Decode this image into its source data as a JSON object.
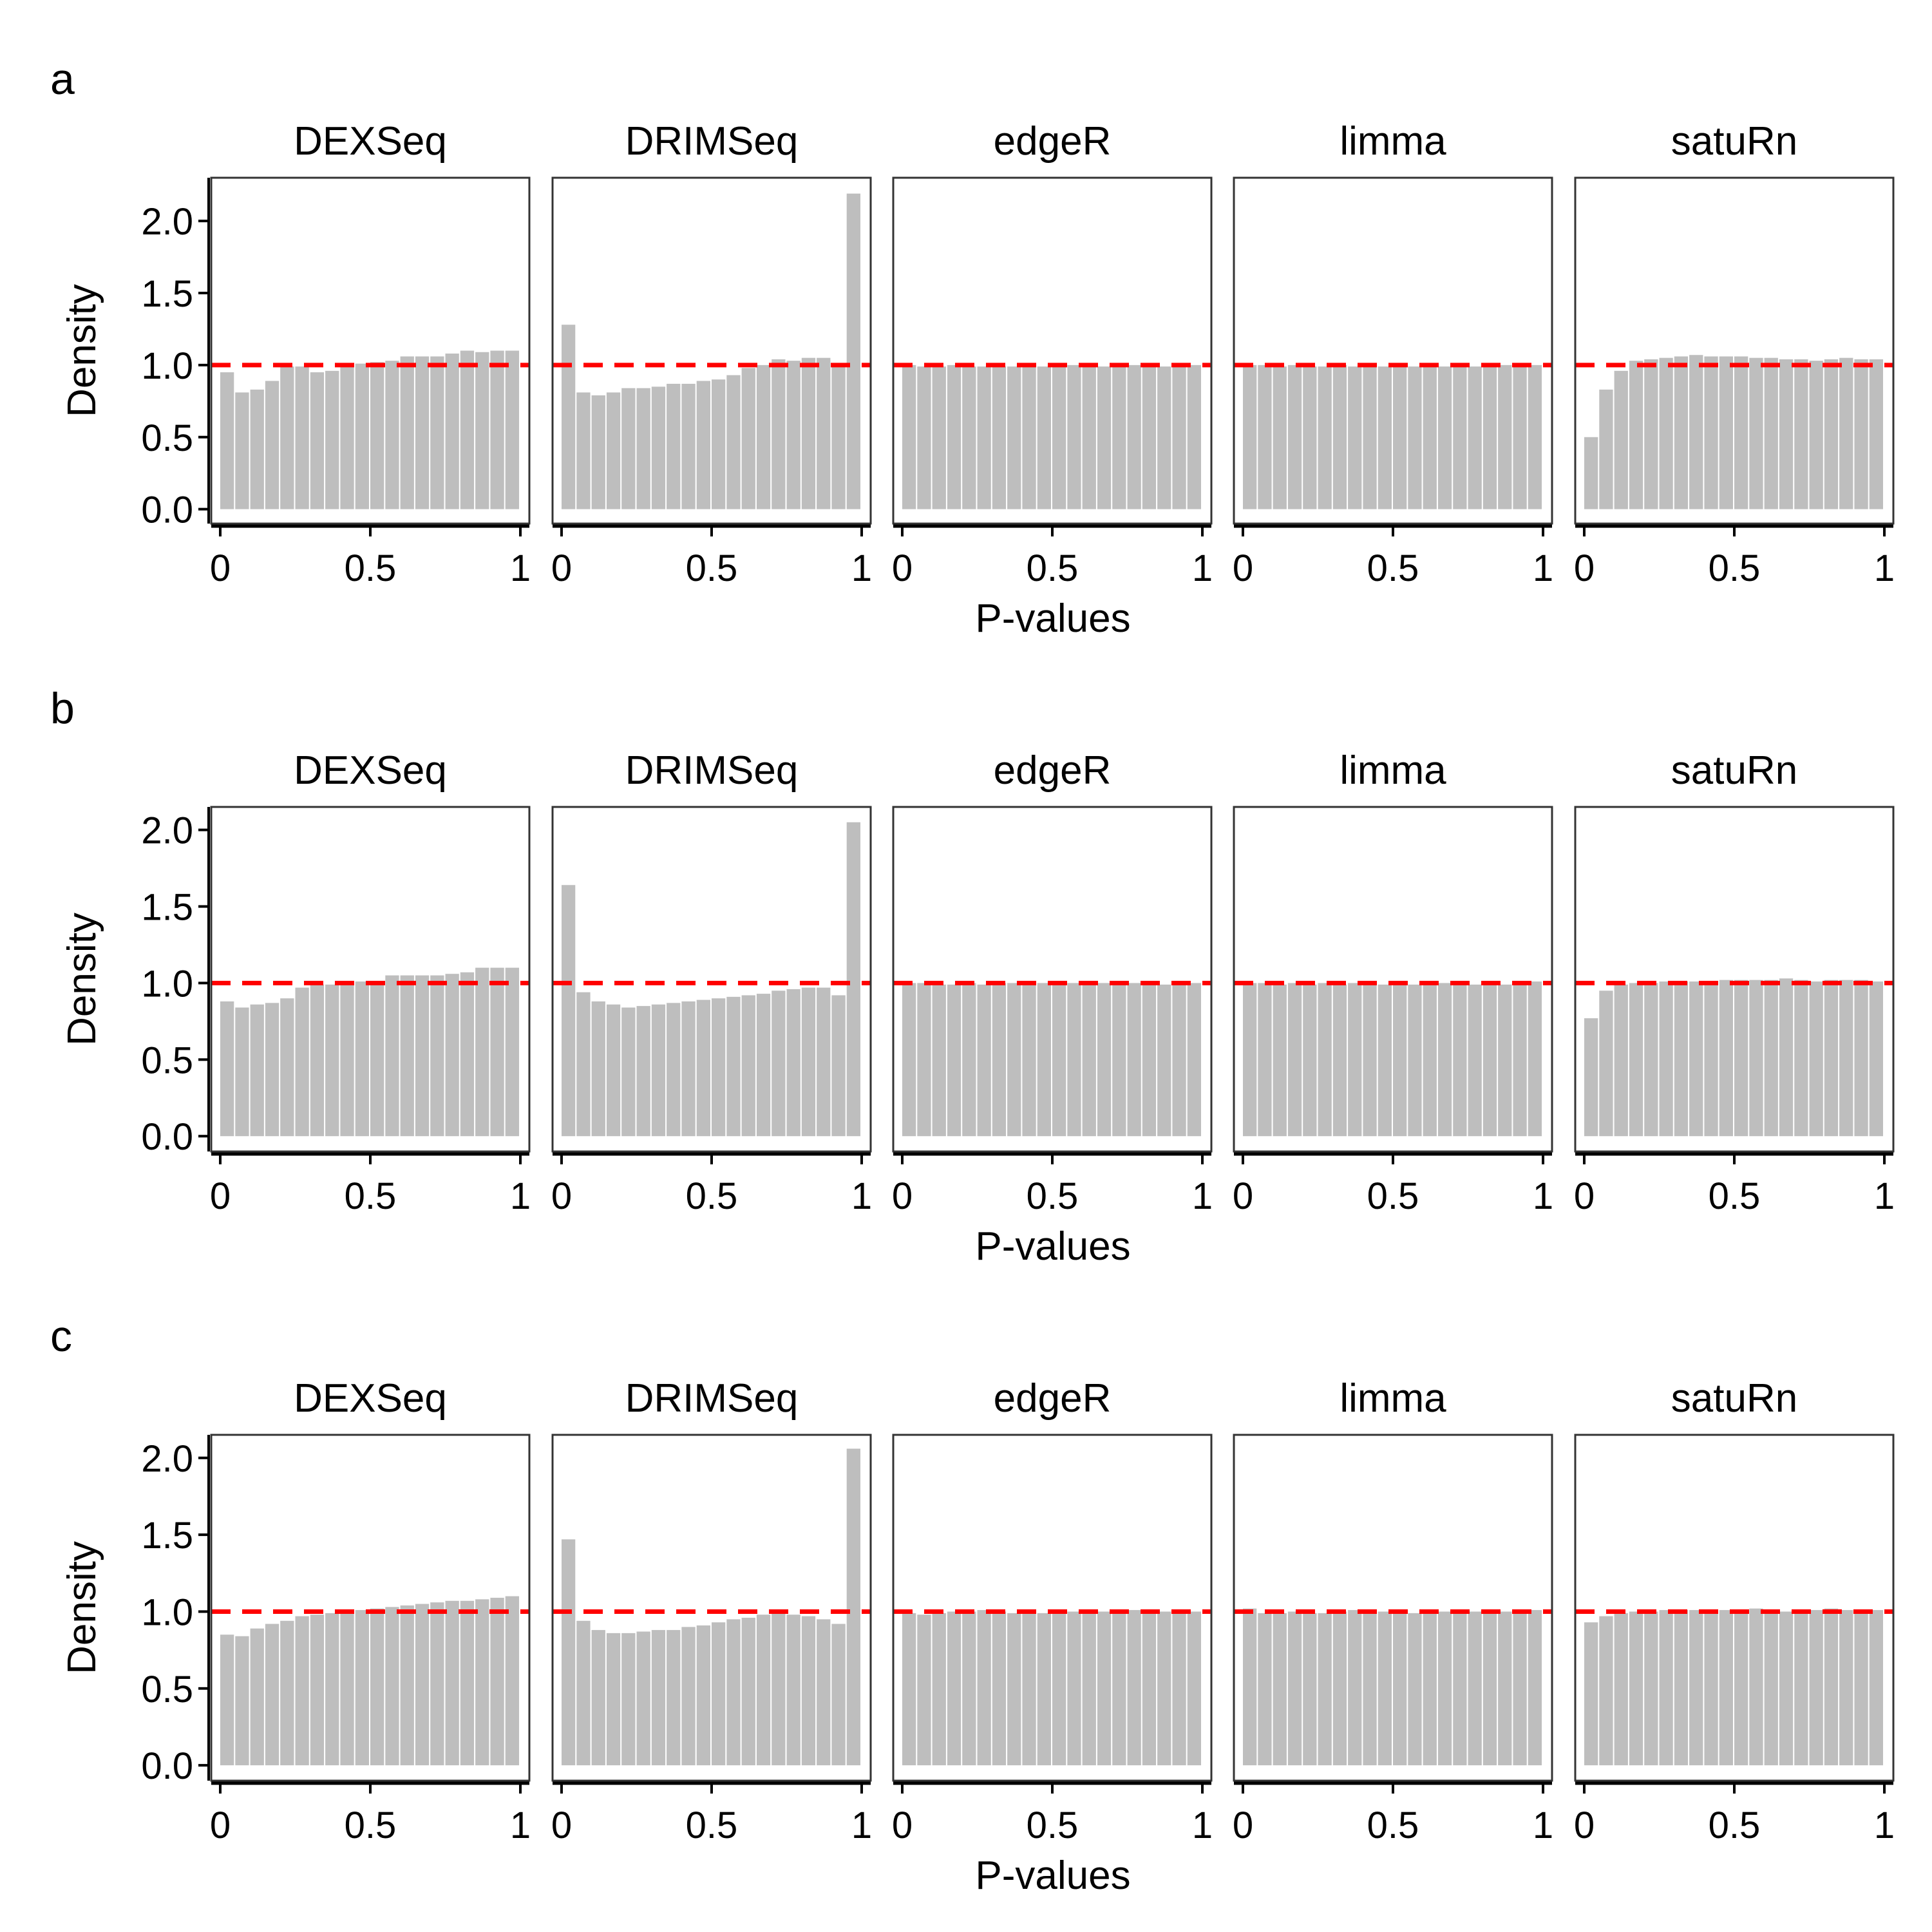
{
  "x_axis_title": "P-values",
  "y_axis_title": "Density",
  "colors": {
    "bar": "#bebebe",
    "reference_line": "#ff0000",
    "panel_border": "#333333",
    "axis": "#000000"
  },
  "chart_data": [
    {
      "type": "bar",
      "label": "a",
      "xlabel": "P-values",
      "ylabel": "Density",
      "ylim": [
        -0.1,
        2.3
      ],
      "y_ticks": [
        "0.0",
        "0.5",
        "1.0",
        "1.5",
        "2.0"
      ],
      "x_ticks": [
        "0",
        "0.5",
        "1"
      ],
      "reference_line_y": 1.0,
      "panels": [
        {
          "method": "DEXSeq",
          "values": [
            0.95,
            0.81,
            0.83,
            0.89,
            0.99,
            0.99,
            0.95,
            0.96,
            0.99,
            1.01,
            1.02,
            1.03,
            1.06,
            1.06,
            1.06,
            1.08,
            1.1,
            1.09,
            1.1,
            1.1
          ]
        },
        {
          "method": "DRIMSeq",
          "values": [
            1.28,
            0.81,
            0.79,
            0.81,
            0.84,
            0.84,
            0.85,
            0.87,
            0.87,
            0.89,
            0.9,
            0.93,
            0.98,
            1.0,
            1.04,
            1.03,
            1.05,
            1.05,
            1.01,
            2.19
          ]
        },
        {
          "method": "edgeR",
          "values": [
            1.0,
            0.99,
            0.99,
            1.0,
            0.99,
            0.99,
            0.99,
            0.99,
            1.0,
            0.99,
            0.99,
            1.0,
            0.99,
            0.99,
            0.99,
            1.0,
            0.99,
            0.99,
            0.99,
            1.0
          ]
        },
        {
          "method": "limma",
          "values": [
            1.0,
            1.0,
            0.99,
            1.0,
            0.99,
            0.99,
            1.0,
            0.99,
            1.0,
            0.99,
            1.0,
            0.99,
            0.99,
            0.99,
            1.0,
            0.99,
            0.99,
            1.0,
            0.99,
            1.0
          ]
        },
        {
          "method": "satuRn",
          "values": [
            0.5,
            0.83,
            0.96,
            1.03,
            1.04,
            1.05,
            1.06,
            1.07,
            1.06,
            1.06,
            1.06,
            1.05,
            1.05,
            1.04,
            1.04,
            1.03,
            1.04,
            1.05,
            1.04,
            1.04
          ]
        }
      ]
    },
    {
      "type": "bar",
      "label": "b",
      "xlabel": "P-values",
      "ylabel": "Density",
      "ylim": [
        -0.1,
        2.15
      ],
      "y_ticks": [
        "0.0",
        "0.5",
        "1.0",
        "1.5",
        "2.0"
      ],
      "x_ticks": [
        "0",
        "0.5",
        "1"
      ],
      "reference_line_y": 1.0,
      "panels": [
        {
          "method": "DEXSeq",
          "values": [
            0.88,
            0.84,
            0.86,
            0.87,
            0.9,
            0.97,
            0.99,
            0.99,
            1.0,
            1.01,
            1.01,
            1.05,
            1.05,
            1.05,
            1.05,
            1.06,
            1.07,
            1.1,
            1.1,
            1.1
          ]
        },
        {
          "method": "DRIMSeq",
          "values": [
            1.64,
            0.94,
            0.88,
            0.86,
            0.84,
            0.85,
            0.86,
            0.87,
            0.88,
            0.89,
            0.9,
            0.91,
            0.92,
            0.93,
            0.95,
            0.96,
            0.97,
            0.97,
            0.92,
            2.05
          ]
        },
        {
          "method": "edgeR",
          "values": [
            1.0,
            1.0,
            0.99,
            0.99,
            1.0,
            0.99,
            1.0,
            1.0,
            1.0,
            1.0,
            0.99,
            1.0,
            1.0,
            1.0,
            1.0,
            1.0,
            1.0,
            0.99,
            1.0,
            1.0
          ]
        },
        {
          "method": "limma",
          "values": [
            1.0,
            1.0,
            0.99,
            1.0,
            0.99,
            1.0,
            0.99,
            1.0,
            1.01,
            0.99,
            1.0,
            0.99,
            1.0,
            1.0,
            0.99,
            0.99,
            1.0,
            0.99,
            1.0,
            1.01
          ]
        },
        {
          "method": "satuRn",
          "values": [
            0.77,
            0.95,
            0.99,
            1.0,
            1.0,
            1.01,
            1.01,
            1.01,
            1.01,
            1.02,
            1.02,
            1.02,
            1.02,
            1.03,
            1.02,
            1.01,
            1.02,
            1.02,
            1.02,
            1.01
          ]
        }
      ]
    },
    {
      "type": "bar",
      "label": "c",
      "xlabel": "P-values",
      "ylabel": "Density",
      "ylim": [
        -0.1,
        2.15
      ],
      "y_ticks": [
        "0.0",
        "0.5",
        "1.0",
        "1.5",
        "2.0"
      ],
      "x_ticks": [
        "0",
        "0.5",
        "1"
      ],
      "reference_line_y": 1.0,
      "panels": [
        {
          "method": "DEXSeq",
          "values": [
            0.85,
            0.84,
            0.89,
            0.92,
            0.94,
            0.97,
            0.98,
            0.99,
            1.0,
            1.01,
            1.02,
            1.03,
            1.04,
            1.05,
            1.06,
            1.07,
            1.07,
            1.08,
            1.09,
            1.1
          ]
        },
        {
          "method": "DRIMSeq",
          "values": [
            1.47,
            0.94,
            0.88,
            0.86,
            0.86,
            0.87,
            0.88,
            0.88,
            0.9,
            0.91,
            0.93,
            0.95,
            0.96,
            0.98,
            0.99,
            0.98,
            0.97,
            0.95,
            0.92,
            2.06
          ]
        },
        {
          "method": "edgeR",
          "values": [
            0.99,
            0.98,
            0.99,
            1.0,
            1.0,
            1.01,
            1.0,
            0.99,
            1.0,
            0.99,
            1.0,
            1.0,
            1.01,
            1.0,
            1.0,
            1.01,
            1.0,
            1.0,
            1.0,
            1.0
          ]
        },
        {
          "method": "limma",
          "values": [
            1.02,
            0.99,
            0.99,
            1.0,
            0.99,
            0.99,
            1.0,
            1.01,
            1.0,
            1.0,
            1.0,
            0.99,
            1.0,
            1.0,
            1.0,
            1.0,
            1.01,
            1.0,
            1.0,
            1.01
          ]
        },
        {
          "method": "satuRn",
          "values": [
            0.93,
            0.97,
            0.99,
            1.0,
            1.0,
            1.01,
            1.01,
            1.01,
            1.01,
            1.01,
            1.01,
            1.02,
            1.01,
            1.0,
            1.01,
            1.01,
            1.02,
            1.01,
            1.01,
            1.01
          ]
        }
      ]
    }
  ]
}
